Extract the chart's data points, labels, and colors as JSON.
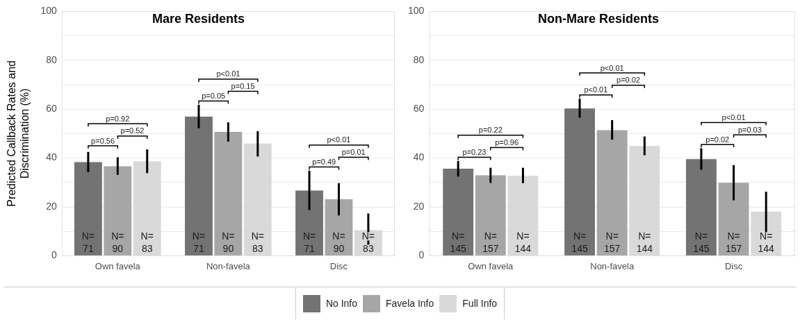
{
  "chart_data": [
    {
      "type": "bar",
      "title": "Mare Residents",
      "ylabel": "Predicted Callback Rates and Discrimination (%)",
      "categories": [
        "Own favela",
        "Non-favela",
        "Disc"
      ],
      "series": [
        {
          "name": "No Info",
          "color": "#737373",
          "values": [
            38.3,
            56.9,
            26.7
          ],
          "errors": [
            [
              34.2,
              42.5
            ],
            [
              52.2,
              61.8
            ],
            [
              18.7,
              34.8
            ]
          ]
        },
        {
          "name": "Favela Info",
          "color": "#a6a6a6",
          "values": [
            36.6,
            50.7,
            23.1
          ],
          "errors": [
            [
              33.1,
              40.3
            ],
            [
              46.7,
              54.6
            ],
            [
              16.5,
              29.7
            ]
          ]
        },
        {
          "name": "Full Info",
          "color": "#d9d9d9",
          "values": [
            38.7,
            45.9,
            10.5
          ],
          "errors": [
            [
              33.8,
              43.5
            ],
            [
              40.6,
              51.0
            ],
            [
              3.8,
              17.3
            ]
          ]
        }
      ],
      "ylim": [
        0,
        100
      ],
      "yticks": [
        0,
        {
          "value": 10,
          "label": null
        },
        20,
        {
          "value": 30,
          "label": null
        },
        40,
        {
          "value": 50,
          "label": null
        },
        60,
        {
          "value": 70,
          "label": null
        },
        80,
        {
          "value": 90,
          "label": null
        },
        100
      ],
      "grid": "y",
      "legend": "bottom",
      "annotations": [
        "p=0.56",
        "p=0.52",
        "p=0.92",
        "p=0.05",
        "p=0.15",
        "p<0.01",
        "p=0.49",
        "p=0.01",
        "p<0.01",
        "N=\n71",
        "N=\n71",
        "N=\n71",
        "N=\n90",
        "N=\n90",
        "N=\n90",
        "N=\n83",
        "N=\n83",
        "N=\n83"
      ]
    },
    {
      "type": "bar",
      "title": "Non-Mare Residents",
      "categories": [
        "Own favela",
        "Non-favela",
        "Disc"
      ],
      "series": [
        {
          "color": "#737373",
          "values": [
            35.6,
            60.3,
            39.5
          ],
          "errors": [
            [
              32.4,
              38.8
            ],
            [
              56.5,
              64.3
            ],
            [
              35.2,
              44.0
            ]
          ]
        },
        {
          "color": "#a6a6a6",
          "values": [
            32.9,
            51.4,
            29.9
          ],
          "errors": [
            [
              29.8,
              36.0
            ],
            [
              47.5,
              55.5
            ],
            [
              22.7,
              37.1
            ]
          ]
        },
        {
          "color": "#d9d9d9",
          "values": [
            32.7,
            44.9,
            18.1
          ],
          "errors": [
            [
              29.7,
              36.0
            ],
            [
              41.1,
              48.8
            ],
            [
              7.0,
              26.2
            ]
          ]
        }
      ],
      "ylim": [
        0,
        100
      ],
      "yticks": [
        0,
        {
          "value": 10,
          "label": null
        },
        20,
        {
          "value": 30,
          "label": null
        },
        40,
        {
          "value": 50,
          "label": null
        },
        60,
        {
          "value": 70,
          "label": null
        },
        80,
        {
          "value": 90,
          "label": null
        },
        100
      ],
      "grid": "y",
      "annotations": [
        "p=0.23",
        "p=0.96",
        "p=0.22",
        "p<0.01",
        "p=0.02",
        "p<0.01",
        "p=0.02",
        "p=0.03",
        "p<0.01",
        "N=\n145",
        "N=\n145",
        "N=\n145",
        "N=\n157",
        "N=\n157",
        "N=\n157",
        "N=\n144",
        "N=\n144",
        "N=\n144"
      ]
    }
  ]
}
